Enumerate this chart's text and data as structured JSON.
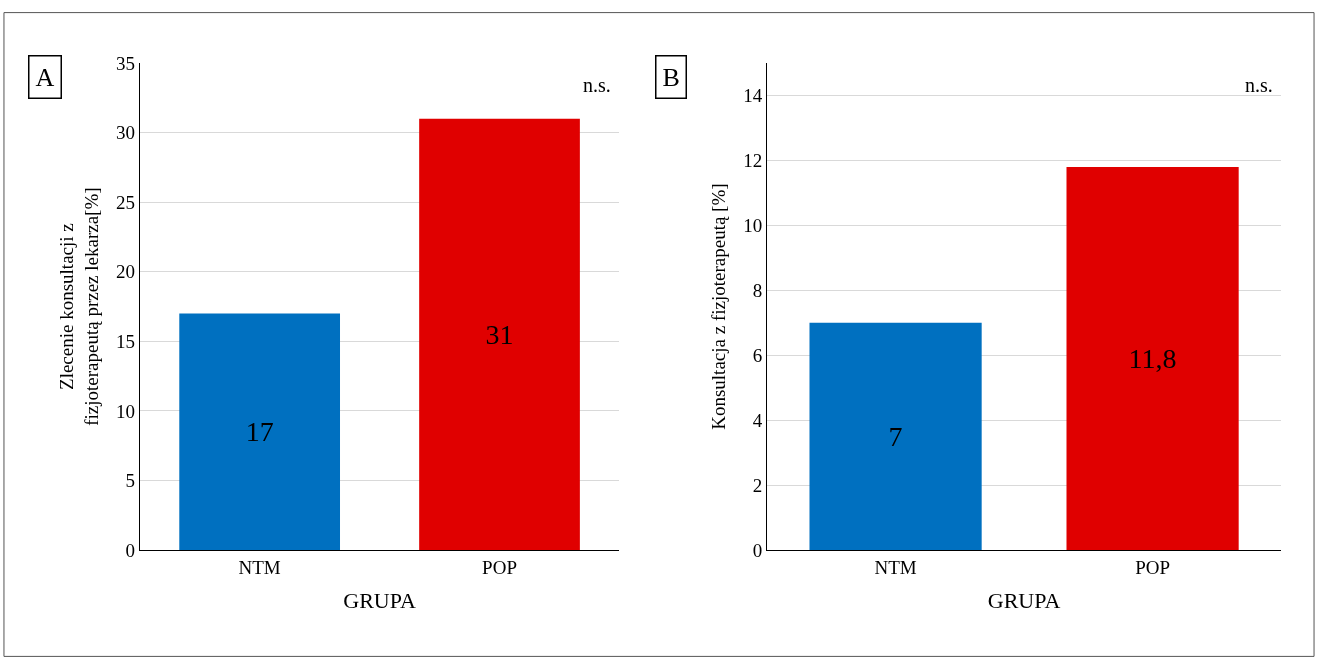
{
  "chart_data": [
    {
      "type": "bar",
      "title": "A",
      "xlabel": "GRUPA",
      "ylabel": "Zlecenie konsultacji z fizjoterapeutą przez lekarza[%]",
      "categories": [
        "NTM",
        "POP"
      ],
      "values": [
        17,
        31
      ],
      "colors": [
        "#0070c0",
        "#e00000"
      ],
      "value_labels": [
        "17",
        "31"
      ],
      "ylim": [
        0,
        35
      ],
      "yticks": [
        0,
        5,
        10,
        15,
        20,
        25,
        30,
        35
      ],
      "grid": "y",
      "annotations": [
        "n.s."
      ]
    },
    {
      "type": "bar",
      "title": "B",
      "xlabel": "GRUPA",
      "ylabel": "Konsultacja z fizjoterapeutą [%]",
      "categories": [
        "NTM",
        "POP"
      ],
      "values": [
        7,
        11.8
      ],
      "colors": [
        "#0070c0",
        "#e00000"
      ],
      "value_labels": [
        "7",
        "11,8"
      ],
      "ylim": [
        0,
        15
      ],
      "yticks": [
        0,
        2,
        4,
        6,
        8,
        10,
        12,
        14
      ],
      "grid": "y",
      "annotations": [
        "n.s."
      ]
    }
  ]
}
